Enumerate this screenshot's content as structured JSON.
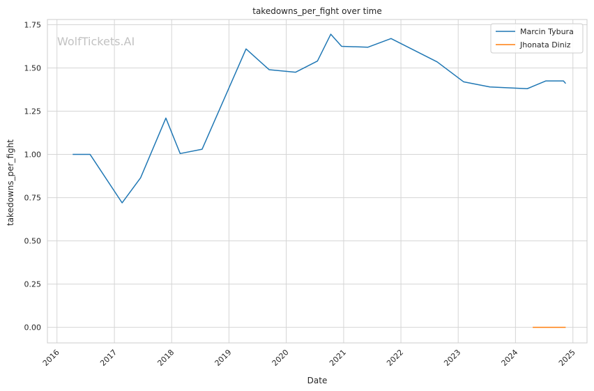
{
  "watermark": "WolfTickets.AI",
  "chart_data": {
    "type": "line",
    "title": "takedowns_per_fight over time",
    "xlabel": "Date",
    "ylabel": "takedowns_per_fight",
    "xlim": [
      "2015-11-01",
      "2025-04-01"
    ],
    "ylim": [
      -0.09,
      1.78
    ],
    "x_ticks": [
      "2016",
      "2017",
      "2018",
      "2019",
      "2020",
      "2021",
      "2022",
      "2023",
      "2024",
      "2025"
    ],
    "y_ticks": [
      "0.00",
      "0.25",
      "0.50",
      "0.75",
      "1.00",
      "1.25",
      "1.50",
      "1.75"
    ],
    "grid": true,
    "legend_position": "top-right",
    "series": [
      {
        "name": "Marcin Tybura",
        "color": "#1f77b4",
        "points": [
          {
            "x": "2016-04-10",
            "y": 1.0
          },
          {
            "x": "2016-07-30",
            "y": 1.0
          },
          {
            "x": "2017-02-19",
            "y": 0.72
          },
          {
            "x": "2017-06-17",
            "y": 0.865
          },
          {
            "x": "2017-11-25",
            "y": 1.21
          },
          {
            "x": "2018-02-24",
            "y": 1.005
          },
          {
            "x": "2018-07-14",
            "y": 1.03
          },
          {
            "x": "2019-04-20",
            "y": 1.61
          },
          {
            "x": "2019-09-14",
            "y": 1.49
          },
          {
            "x": "2020-02-29",
            "y": 1.475
          },
          {
            "x": "2020-07-18",
            "y": 1.54
          },
          {
            "x": "2020-10-11",
            "y": 1.695
          },
          {
            "x": "2020-12-19",
            "y": 1.625
          },
          {
            "x": "2021-06-05",
            "y": 1.62
          },
          {
            "x": "2021-10-30",
            "y": 1.67
          },
          {
            "x": "2022-08-20",
            "y": 1.535
          },
          {
            "x": "2023-02-04",
            "y": 1.42
          },
          {
            "x": "2023-07-22",
            "y": 1.39
          },
          {
            "x": "2024-03-16",
            "y": 1.38
          },
          {
            "x": "2024-07-13",
            "y": 1.425
          },
          {
            "x": "2024-11-02",
            "y": 1.425
          },
          {
            "x": "2024-11-16",
            "y": 1.41
          }
        ]
      },
      {
        "name": "Jhonata Diniz",
        "color": "#ff7f0e",
        "points": [
          {
            "x": "2024-04-20",
            "y": 0.0
          },
          {
            "x": "2024-11-16",
            "y": 0.0
          }
        ]
      }
    ]
  }
}
